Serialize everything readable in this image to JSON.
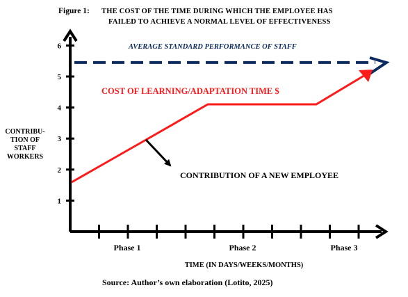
{
  "figure": {
    "label": "Figure 1:",
    "title_line1": "THE COST OF THE TIME  DURING WHICH THE EMPLOYEE HAS",
    "title_line2": "FAILED  TO ACHIEVE  A NORMAL LEVEL  OF EFFECTIVENESS",
    "source": "Source: Author’s own elaboration (Lotito, 2025)"
  },
  "chart_data": {
    "type": "line",
    "title": "THE COST OF THE TIME DURING WHICH THE EMPLOYEE HAS FAILED TO ACHIEVE A NORMAL LEVEL OF EFFECTIVENESS",
    "xlabel": "TIME  (IN DAYS/WEEKS/MONTHS)",
    "ylabel_lines": [
      "CONTRIBU-",
      "TION OF",
      "STAFF",
      "WORKERS"
    ],
    "ylim": [
      0,
      6.6
    ],
    "y_ticks": [
      1,
      2,
      3,
      4,
      5,
      6
    ],
    "x_ticks_count": 10,
    "phases": [
      {
        "label": "Phase 1",
        "center": 2.5
      },
      {
        "label": "Phase  2",
        "center": 6.5
      },
      {
        "label": "Phase 3",
        "center": 10.0
      }
    ],
    "xlim": [
      0,
      11.5
    ],
    "grid": false,
    "series": [
      {
        "name": "AVERAGE  STANDARD PERFORMANCE  OF STAFF",
        "color": "#0b2a5e",
        "style": "dashed",
        "x": [
          0,
          11.3
        ],
        "y": [
          5.45,
          5.45
        ]
      },
      {
        "name": "CONTRIBUTION OF A NEW EMPLOYEE",
        "color": "#ff1a1a",
        "style": "solid",
        "x": [
          0,
          2.5,
          4.7,
          8.4,
          10.3
        ],
        "y": [
          1.65,
          2.95,
          4.1,
          4.1,
          5.25
        ]
      }
    ],
    "annotations": {
      "cost_label": "COST  OF  LEARNING/ADAPTATION TIME  $",
      "avg_label": "AVERAGE  STANDARD PERFORMANCE  OF STAFF",
      "contribution_label": "CONTRIBUTION OF A NEW EMPLOYEE"
    },
    "colors": {
      "axis": "#000000",
      "curve": "#ff1a1a",
      "average": "#0b2a5e",
      "cost_text": "#ff1a1a",
      "label_text": "#0b2a5e"
    }
  }
}
